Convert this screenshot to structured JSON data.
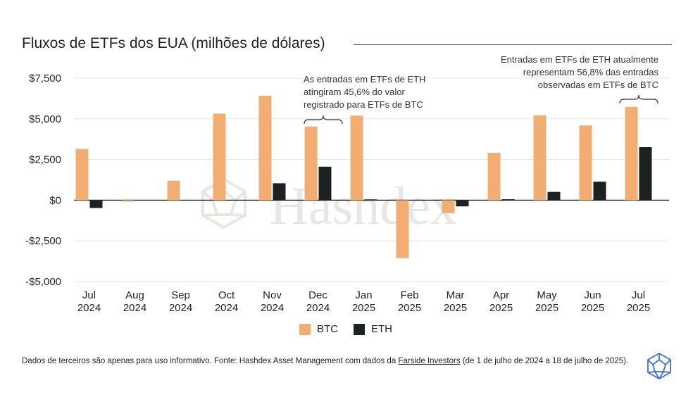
{
  "title": "Fluxos de ETFs dos EUA (milhões de dólares)",
  "watermark": "Hashdex",
  "annotations": {
    "eth_dec": "As entradas em ETFs de ETH atingiram 45,6% do valor registrado para ETFs de BTC",
    "eth_jul": "Entradas em ETFs de ETH atualmente representam 56,8% das entradas observadas em ETFs de BTC"
  },
  "legend": {
    "btc": "BTC",
    "eth": "ETH"
  },
  "footer": {
    "text_before": "Dados de terceiros são apenas para uso informativo. Fonte: Hashdex Asset Management com dados da ",
    "link": "Farside Investors",
    "text_after": " (de 1 de julho de 2024 a 18 de julho de 2025)."
  },
  "colors": {
    "btc": "#F2AE72",
    "eth": "#1C2221",
    "watermark": "#e9e6e3",
    "logo": "#3E6FD8"
  },
  "icons": {
    "logo": "hashdex-logo-icon",
    "watermark": "hashdex-watermark-icon"
  },
  "chart_data": {
    "type": "bar",
    "categories": [
      "Jul 2024",
      "Aug 2024",
      "Sep 2024",
      "Oct 2024",
      "Nov 2024",
      "Dec 2024",
      "Jan 2025",
      "Feb 2025",
      "Mar 2025",
      "Apr 2025",
      "May 2025",
      "Jun 2025",
      "Jul 2025"
    ],
    "category_lines": [
      [
        "Jul",
        "2024"
      ],
      [
        "Aug",
        "2024"
      ],
      [
        "Sep",
        "2024"
      ],
      [
        "Oct",
        "2024"
      ],
      [
        "Nov",
        "2024"
      ],
      [
        "Dec",
        "2024"
      ],
      [
        "Jan",
        "2025"
      ],
      [
        "Feb",
        "2025"
      ],
      [
        "Mar",
        "2025"
      ],
      [
        "Apr",
        "2025"
      ],
      [
        "May",
        "2025"
      ],
      [
        "Jun",
        "2025"
      ],
      [
        "Jul",
        "2025"
      ]
    ],
    "series": [
      {
        "name": "BTC",
        "values": [
          3150,
          -80,
          1200,
          5320,
          6420,
          4530,
          5200,
          -3560,
          -790,
          2920,
          5220,
          4590,
          5730
        ]
      },
      {
        "name": "ETH",
        "values": [
          -480,
          0,
          0,
          0,
          1040,
          2060,
          50,
          0,
          -380,
          60,
          510,
          1140,
          3260
        ]
      }
    ],
    "ylim": [
      -5000,
      7500
    ],
    "yticks": [
      7500,
      5000,
      2500,
      0,
      -2500,
      -5000
    ],
    "ytick_labels": [
      "$7,500",
      "$5,000",
      "$2,500",
      "$0",
      "-$2,500",
      "-$5,000"
    ],
    "grid": true,
    "legend_position": "bottom-center"
  }
}
